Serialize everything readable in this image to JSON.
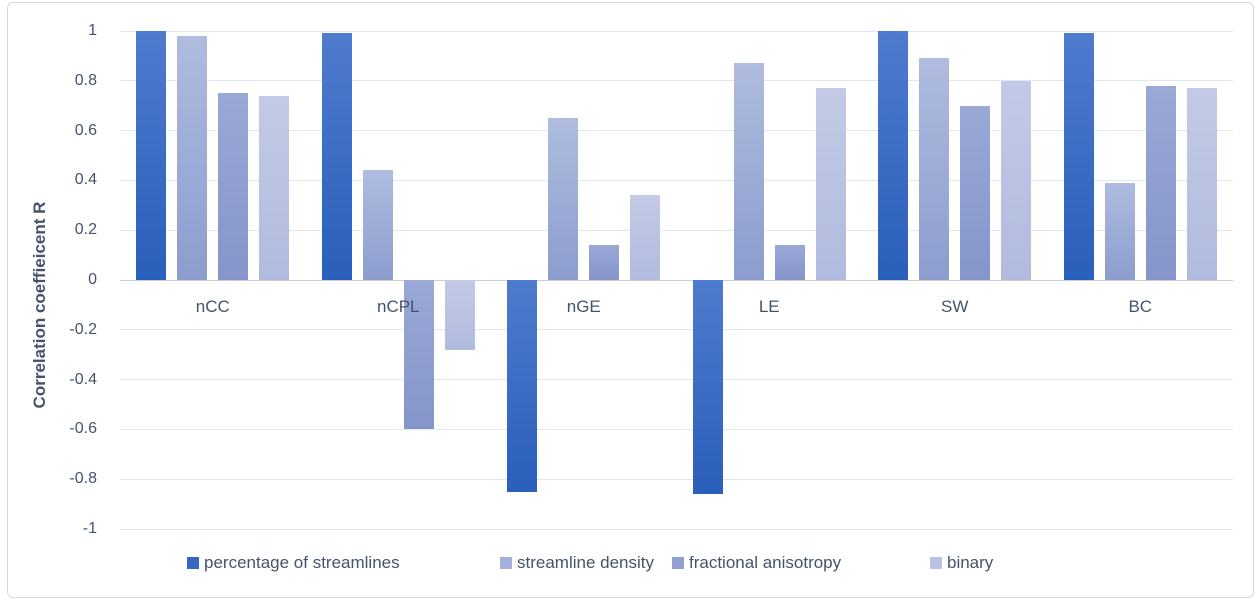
{
  "chart_data": {
    "type": "bar",
    "title": "",
    "xlabel": "",
    "ylabel": "Correlation coeffieicent R",
    "ylim": [
      -1,
      1
    ],
    "ytick_step": 0.2,
    "ytick_labels": [
      "1",
      "0.8",
      "0.6",
      "0.4",
      "0.2",
      "0",
      "-0.2",
      "-0.4",
      "-0.6",
      "-0.8",
      "-1"
    ],
    "grid": true,
    "legend_position": "bottom",
    "categories": [
      "nCC",
      "nCPL",
      "nGE",
      "LE",
      "SW",
      "BC"
    ],
    "series": [
      {
        "name": "percentage of streamlines",
        "values": [
          1.0,
          0.99,
          -0.85,
          -0.86,
          1.0,
          0.99
        ],
        "color_top": "#4f7bce",
        "color_bottom": "#2a5fbb",
        "legend_color": "#3566c1"
      },
      {
        "name": "streamline density",
        "values": [
          0.98,
          0.44,
          0.65,
          0.87,
          0.89,
          0.39
        ],
        "color_top": "#afbcdf",
        "color_bottom": "#8c9cce",
        "legend_color": "#a3b0d9"
      },
      {
        "name": "fractional anisotropy",
        "values": [
          0.75,
          -0.6,
          0.14,
          0.14,
          0.7,
          0.78
        ],
        "color_top": "#9aa8d6",
        "color_bottom": "#8595c9",
        "legend_color": "#8fa0d1"
      },
      {
        "name": "binary",
        "values": [
          0.74,
          -0.28,
          0.34,
          0.77,
          0.8,
          0.77
        ],
        "color_top": "#c2cae6",
        "color_bottom": "#b1bbde",
        "legend_color": "#b9c2e2"
      }
    ]
  },
  "colors": {
    "text": "#44546a",
    "gridline": "#e2e6ee",
    "zero_line": "#c9cdd6",
    "frame_border": "#d8d8d8",
    "background": "#ffffff"
  }
}
